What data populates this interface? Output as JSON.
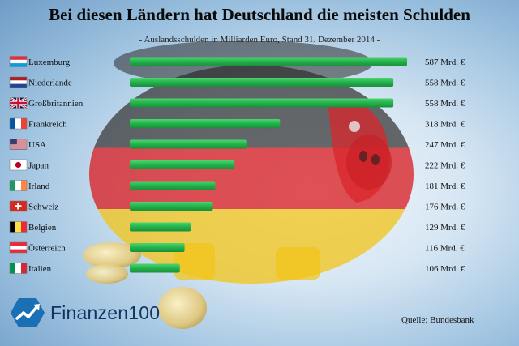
{
  "title": "Bei diesen Ländern hat Deutschland die meisten Schulden",
  "subtitle": "- Auslandsschulden in Milliarden Euro, Stand 31. Dezember 2014 -",
  "source": "Quelle: Bundesbank",
  "logo_text": "Finanzen100",
  "colors": {
    "bar": "#22b24c",
    "bar_dark": "#1a8f3a"
  },
  "chart_data": {
    "type": "bar",
    "orientation": "horizontal",
    "title": "Bei diesen Ländern hat Deutschland die meisten Schulden",
    "subtitle": "- Auslandsschulden in Milliarden Euro, Stand 31. Dezember 2014 -",
    "categories": [
      "Luxemburg",
      "Niederlande",
      "Großbritannien",
      "Frankreich",
      "USA",
      "Japan",
      "Irland",
      "Schweiz",
      "Belgien",
      "Österreich",
      "Italien"
    ],
    "values": [
      587,
      558,
      558,
      318,
      247,
      222,
      181,
      176,
      129,
      116,
      106
    ],
    "value_labels": [
      "587 Mrd. €",
      "558 Mrd. €",
      "558 Mrd. €",
      "318 Mrd. €",
      "247 Mrd. €",
      "222 Mrd. €",
      "181 Mrd. €",
      "176 Mrd. €",
      "129 Mrd. €",
      "116 Mrd. €",
      "106 Mrd. €"
    ],
    "flags": [
      "flag-luxembourg",
      "flag-netherlands",
      "flag-united-kingdom",
      "flag-france",
      "flag-usa",
      "flag-japan",
      "flag-ireland",
      "flag-switzerland",
      "flag-belgium",
      "flag-austria",
      "flag-italy"
    ],
    "xlim": [
      0,
      587
    ],
    "grid": false,
    "legend": "none"
  }
}
